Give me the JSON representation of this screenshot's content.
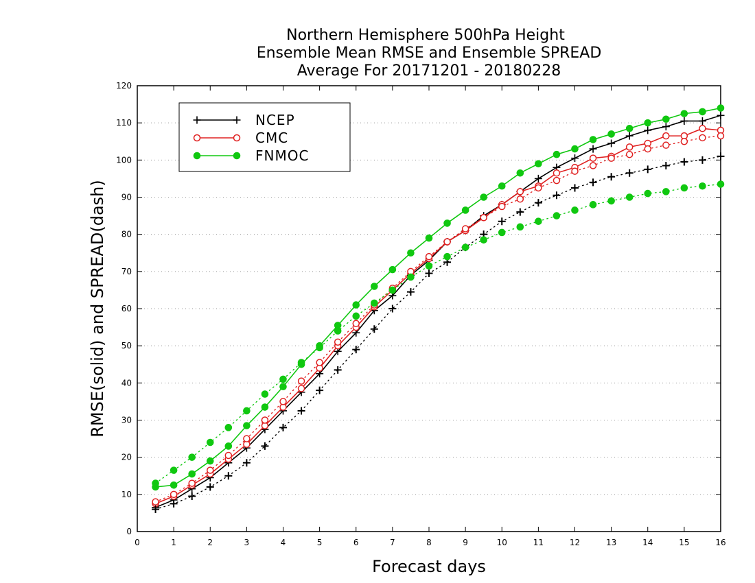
{
  "chart_data": {
    "type": "line",
    "title_lines": [
      "Northern Hemisphere 500hPa Height",
      "Ensemble Mean RMSE and Ensemble SPREAD",
      "Average For 20171201 - 20180228"
    ],
    "xlabel": "Forecast days",
    "ylabel": "RMSE(solid) and SPREAD(dash)",
    "xlim": [
      0,
      16
    ],
    "ylim": [
      0,
      120
    ],
    "xticks": [
      "0",
      "1",
      "2",
      "3",
      "4",
      "5",
      "6",
      "7",
      "8",
      "9",
      "10",
      "11",
      "12",
      "13",
      "14",
      "15",
      "16"
    ],
    "yticks": [
      "0",
      "10",
      "20",
      "30",
      "40",
      "50",
      "60",
      "70",
      "80",
      "90",
      "100",
      "110",
      "120"
    ],
    "grid": "horizontal-dotted",
    "legend_position": "top-left",
    "x": [
      0.5,
      1,
      1.5,
      2,
      2.5,
      3,
      3.5,
      4,
      4.5,
      5,
      5.5,
      6,
      6.5,
      7,
      7.5,
      8,
      8.5,
      9,
      9.5,
      10,
      10.5,
      11,
      11.5,
      12,
      12.5,
      13,
      13.5,
      14,
      14.5,
      15,
      15.5,
      16
    ],
    "series": [
      {
        "name": "NCEP",
        "color": "#000000",
        "marker": "plus",
        "style": "solid",
        "values": [
          6.5,
          8.5,
          11.5,
          14.5,
          18.5,
          22.5,
          27.5,
          32.5,
          37.5,
          42.5,
          48.5,
          53.5,
          59.5,
          63.5,
          69,
          73,
          78,
          81,
          85,
          88,
          91.5,
          95,
          98,
          100.5,
          103,
          104.5,
          106.5,
          108,
          109,
          110.5,
          110.5,
          112
        ]
      },
      {
        "name": "CMC",
        "color": "#e02020",
        "marker": "circle",
        "style": "solid",
        "values": [
          7.5,
          9.5,
          12.5,
          15.5,
          19.5,
          23.5,
          28.5,
          33.5,
          38.5,
          44,
          50,
          55,
          60.5,
          65,
          69.5,
          73.5,
          78,
          81,
          84.5,
          88,
          91.5,
          93,
          96.5,
          98,
          100.5,
          101,
          103.5,
          104.5,
          106.5,
          106.5,
          108.5,
          108
        ]
      },
      {
        "name": "FNMOC",
        "color": "#10c810",
        "marker": "dot",
        "style": "solid",
        "values": [
          12,
          12.5,
          15.5,
          19,
          23,
          28.5,
          33.5,
          39,
          45,
          50,
          55.5,
          61,
          66,
          70.5,
          75,
          79,
          83,
          86.5,
          90,
          93,
          96.5,
          99,
          101.5,
          103,
          105.5,
          107,
          108.5,
          110,
          111,
          112.5,
          113,
          114
        ]
      },
      {
        "name": "NCEP",
        "color": "#000000",
        "marker": "plus",
        "style": "dotted",
        "values": [
          6,
          7.5,
          9.5,
          12,
          15,
          18.5,
          23,
          28,
          32.5,
          38,
          43.5,
          49,
          54.5,
          60,
          64.5,
          69.5,
          72.5,
          76.5,
          80,
          83.5,
          86,
          88.5,
          90.5,
          92.5,
          94,
          95.5,
          96.5,
          97.5,
          98.5,
          99.5,
          100,
          101
        ]
      },
      {
        "name": "CMC",
        "color": "#e02020",
        "marker": "circle",
        "style": "dotted",
        "values": [
          8,
          10,
          13,
          16.5,
          20.5,
          25,
          30,
          35,
          40.5,
          45.5,
          51,
          56,
          61,
          65.5,
          70,
          74,
          78,
          81.5,
          84.5,
          87.5,
          89.5,
          92.5,
          94.5,
          97,
          98.5,
          100.5,
          101.5,
          103,
          104,
          105,
          106,
          106.5
        ]
      },
      {
        "name": "FNMOC",
        "color": "#10c810",
        "marker": "dot",
        "style": "dotted",
        "values": [
          13,
          16.5,
          20,
          24,
          28,
          32.5,
          37,
          41,
          45.5,
          49.5,
          54,
          58,
          61.5,
          65,
          68.5,
          71.5,
          74,
          76.5,
          78.5,
          80.5,
          82,
          83.5,
          85,
          86.5,
          88,
          89,
          90,
          91,
          91.5,
          92.5,
          93,
          93.5
        ]
      }
    ],
    "legend": [
      "NCEP",
      "CMC",
      "FNMOC"
    ]
  }
}
